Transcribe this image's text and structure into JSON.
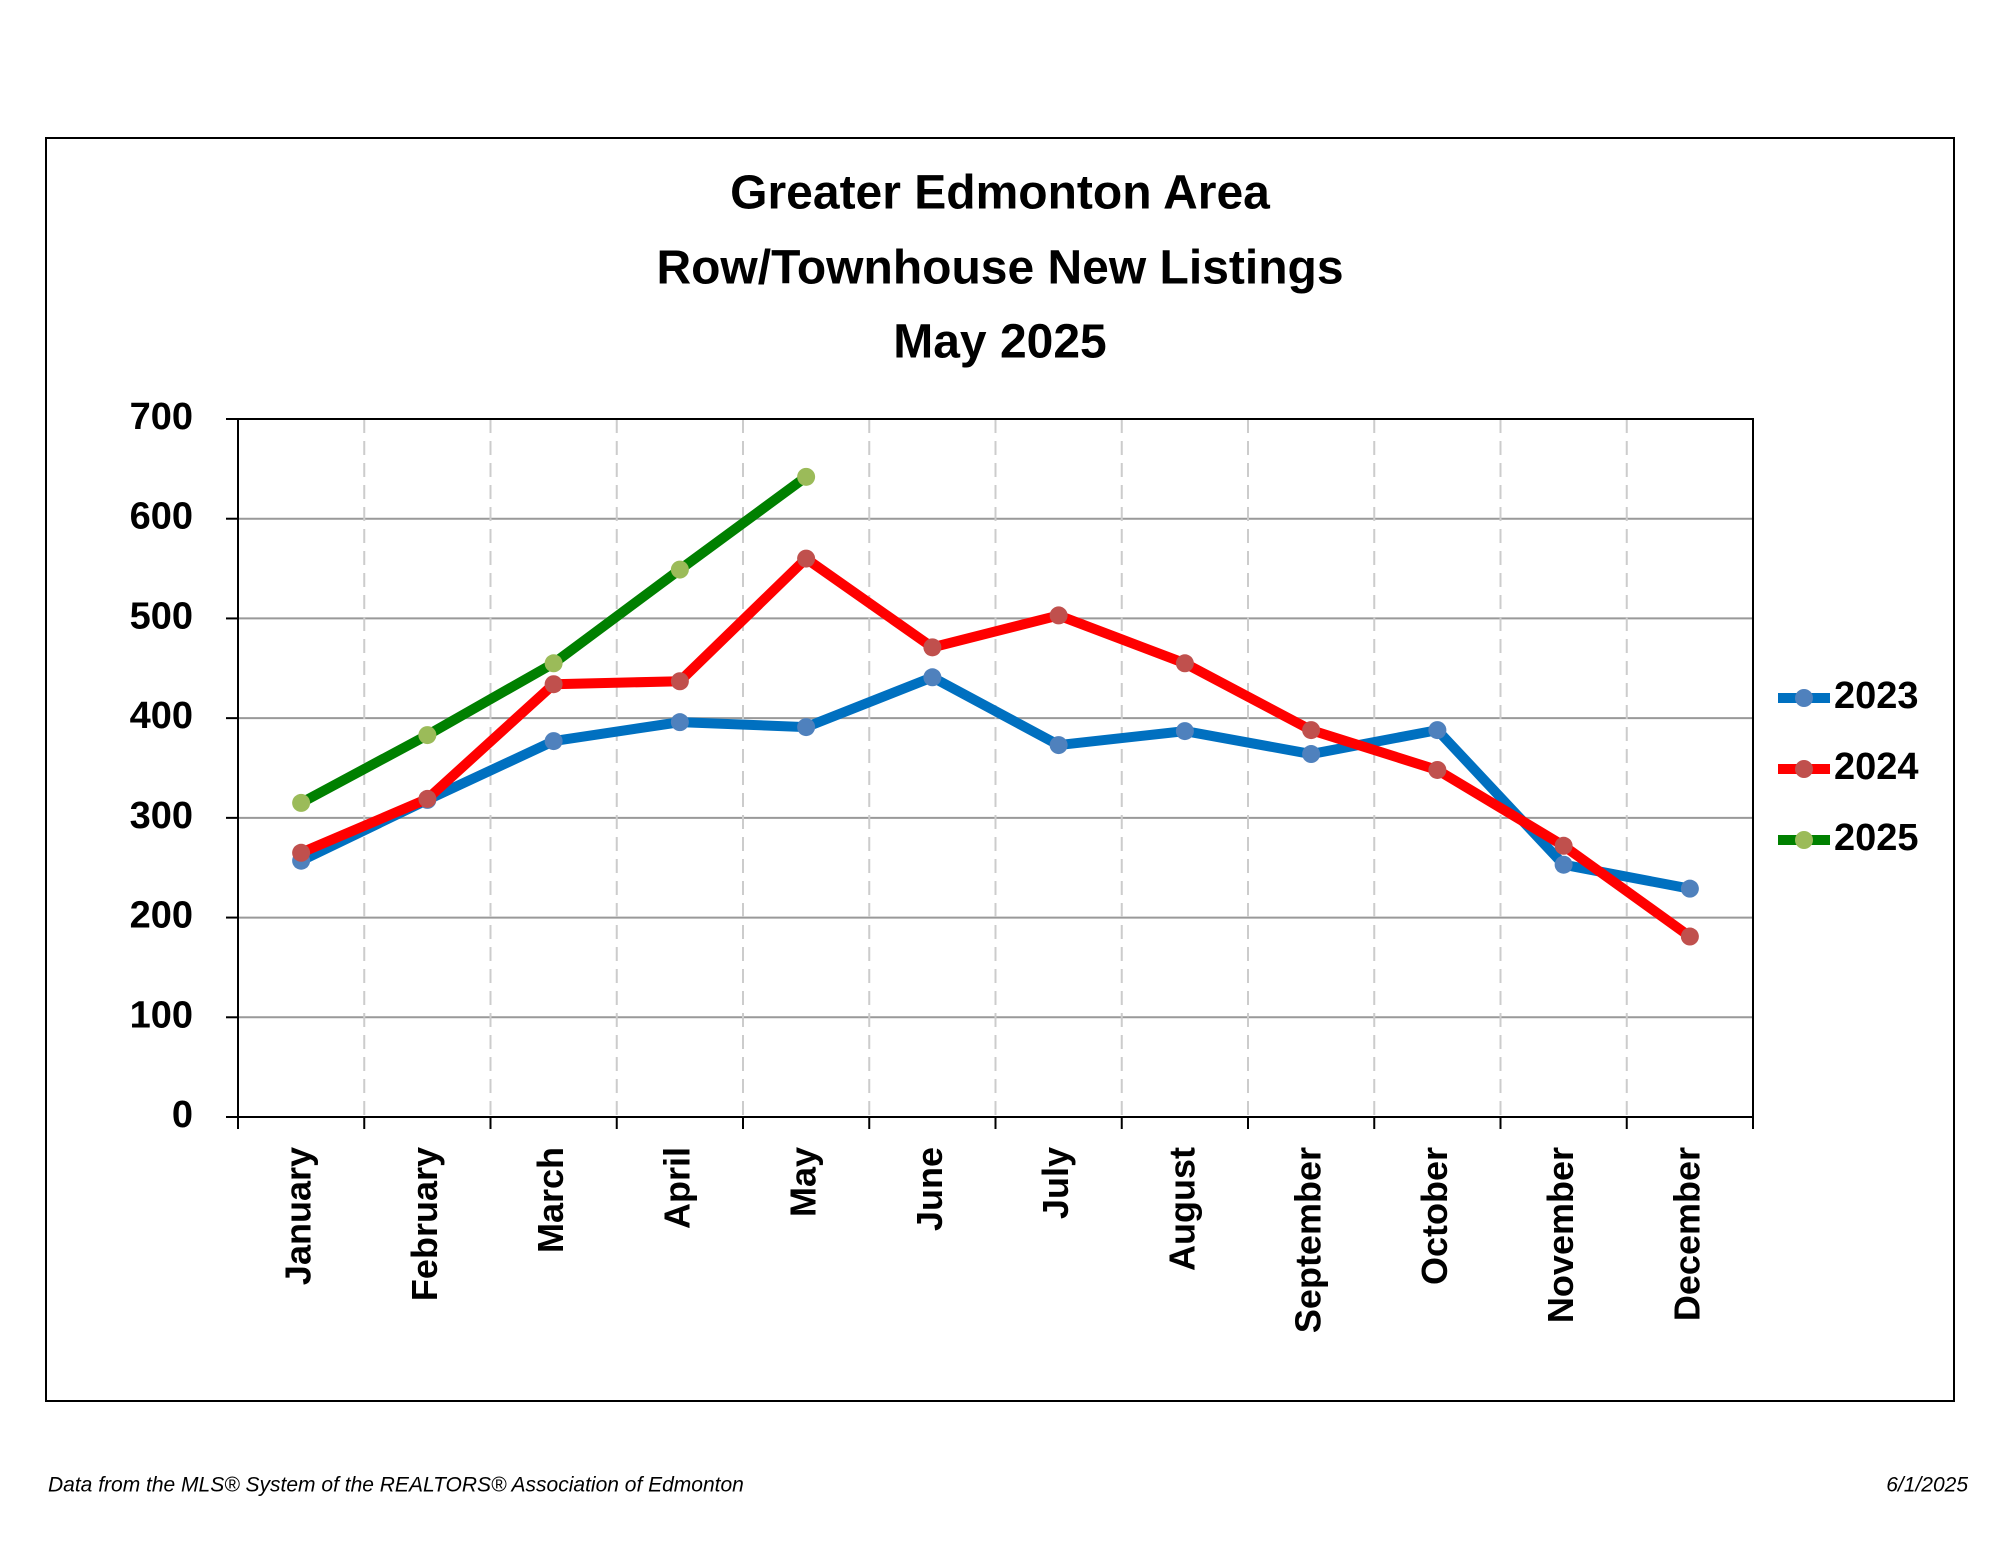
{
  "chart_data": {
    "type": "line",
    "title": [
      "Greater Edmonton Area",
      "Row/Townhouse New Listings",
      "May 2025"
    ],
    "categories": [
      "January",
      "February",
      "March",
      "April",
      "May",
      "June",
      "July",
      "August",
      "September",
      "October",
      "November",
      "December"
    ],
    "series": [
      {
        "name": "2023",
        "color": "#0070c0",
        "marker_color": "#4f81bd",
        "values": [
          257,
          318,
          377,
          396,
          391,
          441,
          373,
          387,
          364,
          388,
          253,
          229
        ]
      },
      {
        "name": "2024",
        "color": "#ff0000",
        "marker_color": "#c0504d",
        "values": [
          265,
          319,
          434,
          437,
          560,
          471,
          503,
          455,
          388,
          348,
          272,
          181
        ]
      },
      {
        "name": "2025",
        "color": "#008000",
        "marker_color": "#9bbb59",
        "values": [
          315,
          383,
          455,
          549,
          642,
          null,
          null,
          null,
          null,
          null,
          null,
          null
        ]
      }
    ],
    "ylim": [
      0,
      700
    ],
    "yticks": [
      0,
      100,
      200,
      300,
      400,
      500,
      600,
      700
    ],
    "grid": true,
    "legend": "right",
    "source": "Data from the MLS® System of the REALTORS® Association of Edmonton",
    "date": "6/1/2025"
  }
}
